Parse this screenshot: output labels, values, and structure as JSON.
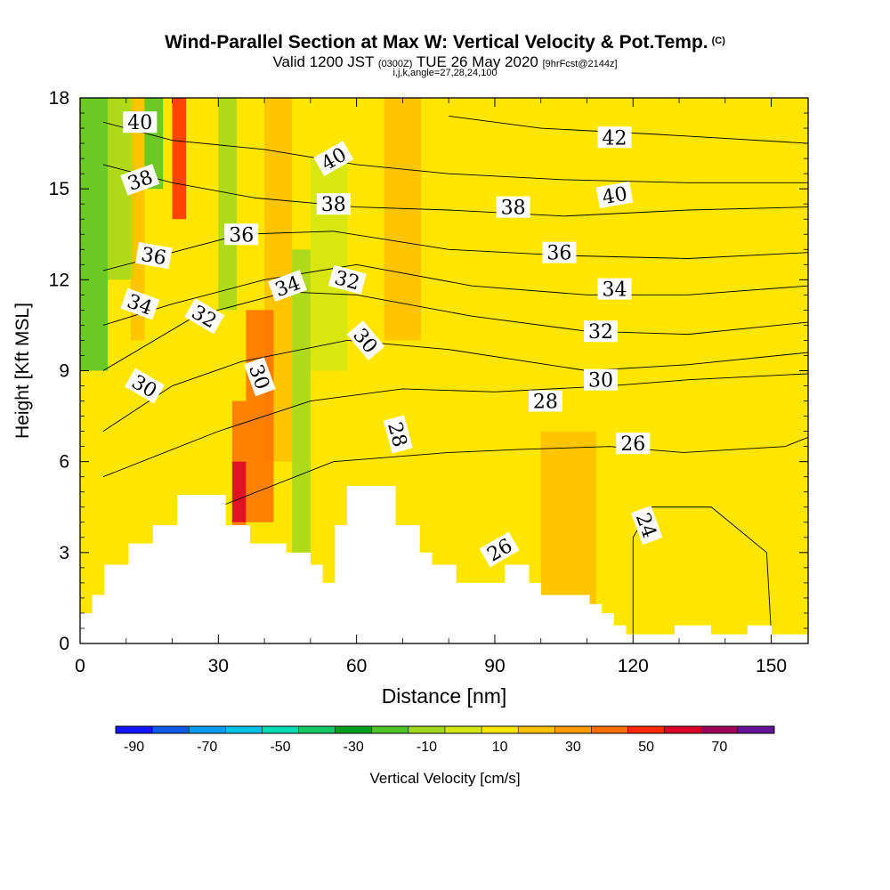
{
  "title": "Wind-Parallel Section at Max W: Vertical Velocity & Pot.Temp.",
  "title_mark": "(C)",
  "subtitle_pre": "Valid 1200 JST",
  "subtitle_small": "(0300Z)",
  "subtitle_post": "TUE 26 May 2020",
  "subtitle_tag": "[9hrFcst@2144z]",
  "subtitle2": "i,j,k,angle=27,28,24,100",
  "chart_data": {
    "type": "heatmap",
    "xlabel": "Distance [nm]",
    "ylabel": "Height [Kft MSL]",
    "xlim": [
      0,
      158
    ],
    "ylim": [
      0,
      18
    ],
    "xticks": [
      "0",
      "30",
      "60",
      "90",
      "120",
      "150"
    ],
    "yticks": [
      "0",
      "3",
      "6",
      "9",
      "12",
      "15",
      "18"
    ],
    "colorbar": {
      "label": "Vertical Velocity [cm/s]",
      "ticks": [
        "-90",
        "-70",
        "-50",
        "-30",
        "-10",
        "10",
        "30",
        "50",
        "70"
      ],
      "bins": [
        -90,
        -80,
        -70,
        -60,
        -50,
        -40,
        -30,
        -20,
        -10,
        0,
        10,
        20,
        30,
        40,
        50,
        60,
        70
      ],
      "colors": [
        "#1414ff",
        "#0f5ae6",
        "#0a9cf0",
        "#00c3e6",
        "#00dcb4",
        "#14c864",
        "#00a01e",
        "#50c328",
        "#a0d71e",
        "#d2e614",
        "#ffe600",
        "#ffbe00",
        "#ff9b00",
        "#ff6e00",
        "#ff2800",
        "#dc0028",
        "#a0005a",
        "#641496"
      ]
    },
    "terrain": [
      [
        0,
        1.0
      ],
      [
        1,
        1.0
      ],
      [
        1,
        1.6
      ],
      [
        2,
        1.6
      ],
      [
        2,
        2.6
      ],
      [
        4,
        2.6
      ],
      [
        4,
        3.3
      ],
      [
        6,
        3.3
      ],
      [
        6,
        3.9
      ],
      [
        8,
        3.9
      ],
      [
        8,
        4.9
      ],
      [
        12,
        4.9
      ],
      [
        12,
        3.9
      ],
      [
        14,
        3.9
      ],
      [
        14,
        3.3
      ],
      [
        17,
        3.3
      ],
      [
        17,
        3.0
      ],
      [
        19,
        3.0
      ],
      [
        19,
        2.6
      ],
      [
        20,
        2.6
      ],
      [
        20,
        2.0
      ],
      [
        21,
        2.0
      ],
      [
        21,
        3.9
      ],
      [
        22,
        3.9
      ],
      [
        22,
        5.2
      ],
      [
        26,
        5.2
      ],
      [
        26,
        3.9
      ],
      [
        28,
        3.9
      ],
      [
        28,
        3.0
      ],
      [
        29,
        3.0
      ],
      [
        29,
        2.6
      ],
      [
        31,
        2.6
      ],
      [
        31,
        2.0
      ],
      [
        35,
        2.0
      ],
      [
        35,
        2.6
      ],
      [
        37,
        2.6
      ],
      [
        37,
        2.0
      ],
      [
        38,
        2.0
      ],
      [
        38,
        1.6
      ],
      [
        42,
        1.6
      ],
      [
        42,
        1.3
      ],
      [
        43,
        1.3
      ],
      [
        43,
        1.0
      ],
      [
        44,
        1.0
      ],
      [
        44,
        0.6
      ],
      [
        45,
        0.6
      ],
      [
        45,
        0.3
      ],
      [
        49,
        0.3
      ],
      [
        49,
        0.6
      ],
      [
        52,
        0.6
      ],
      [
        52,
        0.3
      ],
      [
        55,
        0.3
      ],
      [
        55,
        0.6
      ],
      [
        57,
        0.6
      ],
      [
        57,
        0.3
      ],
      [
        60,
        0.3
      ]
    ],
    "terrain_note": "terrain x values are model grid columns (60 columns span 0–158 nm)",
    "vertical_velocity_cells": [
      {
        "x": [
          0,
          6
        ],
        "y": [
          9,
          18
        ],
        "w": -25
      },
      {
        "x": [
          6,
          12
        ],
        "y": [
          12,
          18
        ],
        "w": -15
      },
      {
        "x": [
          11,
          14
        ],
        "y": [
          10,
          18
        ],
        "w": 12
      },
      {
        "x": [
          33,
          36
        ],
        "y": [
          3,
          8
        ],
        "w": 35
      },
      {
        "x": [
          33,
          36
        ],
        "y": [
          4,
          6
        ],
        "w": 55
      },
      {
        "x": [
          14,
          18
        ],
        "y": [
          15,
          18
        ],
        "w": -30
      },
      {
        "x": [
          20,
          23
        ],
        "y": [
          14,
          18
        ],
        "w": 45
      },
      {
        "x": [
          30,
          34
        ],
        "y": [
          11,
          18
        ],
        "w": -15
      },
      {
        "x": [
          40,
          46
        ],
        "y": [
          6,
          18
        ],
        "w": 12
      },
      {
        "x": [
          66,
          74
        ],
        "y": [
          10,
          18
        ],
        "w": 15
      },
      {
        "x": [
          100,
          112
        ],
        "y": [
          1,
          7
        ],
        "w": 15
      },
      {
        "x": [
          36,
          42
        ],
        "y": [
          4,
          11
        ],
        "w": 35
      },
      {
        "x": [
          46,
          50
        ],
        "y": [
          3,
          13
        ],
        "w": -15
      },
      {
        "x": [
          50,
          58
        ],
        "y": [
          9,
          16
        ],
        "w": -10
      }
    ],
    "potential_temperature_contours": [
      {
        "label": "24",
        "points": [
          [
            120,
            0.3
          ],
          [
            120,
            3.5
          ],
          [
            124,
            4.5
          ],
          [
            137,
            4.5
          ],
          [
            149,
            3.0
          ],
          [
            150,
            0.3
          ]
        ]
      },
      {
        "label": "26",
        "points": [
          [
            5,
            1.5
          ],
          [
            30,
            4.5
          ],
          [
            55,
            6.0
          ],
          [
            80,
            6.3
          ],
          [
            95,
            6.4
          ],
          [
            115,
            6.5
          ],
          [
            131,
            6.3
          ],
          [
            153,
            6.5
          ],
          [
            158,
            6.8
          ]
        ]
      },
      {
        "label": "28",
        "points": [
          [
            5,
            5.5
          ],
          [
            30,
            7.0
          ],
          [
            50,
            8.0
          ],
          [
            70,
            8.4
          ],
          [
            90,
            8.3
          ],
          [
            115,
            8.5
          ],
          [
            132,
            8.7
          ],
          [
            158,
            8.9
          ]
        ]
      },
      {
        "label": "30",
        "points": [
          [
            5,
            7.0
          ],
          [
            20,
            8.5
          ],
          [
            35,
            9.3
          ],
          [
            58,
            10.0
          ],
          [
            80,
            9.7
          ],
          [
            110,
            9.0
          ],
          [
            132,
            9.2
          ],
          [
            158,
            9.6
          ]
        ]
      },
      {
        "label": "32",
        "points": [
          [
            5,
            9.0
          ],
          [
            25,
            10.8
          ],
          [
            45,
            11.6
          ],
          [
            60,
            11.5
          ],
          [
            85,
            10.8
          ],
          [
            110,
            10.3
          ],
          [
            132,
            10.2
          ],
          [
            158,
            10.6
          ]
        ]
      },
      {
        "label": "34",
        "points": [
          [
            5,
            10.5
          ],
          [
            20,
            11.2
          ],
          [
            40,
            12.0
          ],
          [
            60,
            12.5
          ],
          [
            85,
            11.8
          ],
          [
            110,
            11.5
          ],
          [
            132,
            11.5
          ],
          [
            158,
            11.8
          ]
        ]
      },
      {
        "label": "36",
        "points": [
          [
            5,
            12.3
          ],
          [
            20,
            12.9
          ],
          [
            35,
            13.5
          ],
          [
            55,
            13.6
          ],
          [
            80,
            13.0
          ],
          [
            105,
            12.8
          ],
          [
            132,
            12.7
          ],
          [
            158,
            12.9
          ]
        ]
      },
      {
        "label": "38",
        "points": [
          [
            5,
            15.8
          ],
          [
            20,
            15.2
          ],
          [
            38,
            14.7
          ],
          [
            60,
            14.4
          ],
          [
            80,
            14.3
          ],
          [
            105,
            14.1
          ],
          [
            132,
            14.3
          ],
          [
            158,
            14.4
          ]
        ]
      },
      {
        "label": "40",
        "points": [
          [
            5,
            17.2
          ],
          [
            20,
            16.6
          ],
          [
            40,
            16.3
          ],
          [
            60,
            15.8
          ],
          [
            80,
            15.5
          ],
          [
            105,
            15.3
          ],
          [
            132,
            15.2
          ],
          [
            158,
            15.2
          ]
        ]
      },
      {
        "label": "42",
        "points": [
          [
            80,
            17.4
          ],
          [
            100,
            17.0
          ],
          [
            125,
            16.8
          ],
          [
            158,
            16.5
          ]
        ]
      }
    ],
    "contour_labels": [
      {
        "text": "40",
        "x": 13,
        "y": 17.2,
        "rot": 0
      },
      {
        "text": "38",
        "x": 13,
        "y": 15.3,
        "rot": 20
      },
      {
        "text": "36",
        "x": 16,
        "y": 12.8,
        "rot": -10
      },
      {
        "text": "34",
        "x": 13,
        "y": 11.2,
        "rot": -20
      },
      {
        "text": "32",
        "x": 27,
        "y": 10.8,
        "rot": -30
      },
      {
        "text": "30",
        "x": 14,
        "y": 8.5,
        "rot": -30
      },
      {
        "text": "36",
        "x": 35,
        "y": 13.5,
        "rot": 0
      },
      {
        "text": "34",
        "x": 45,
        "y": 11.8,
        "rot": 20
      },
      {
        "text": "30",
        "x": 39,
        "y": 8.8,
        "rot": -70
      },
      {
        "text": "40",
        "x": 55,
        "y": 16.0,
        "rot": 30
      },
      {
        "text": "38",
        "x": 55,
        "y": 14.5,
        "rot": 0
      },
      {
        "text": "32",
        "x": 58,
        "y": 12.0,
        "rot": -15
      },
      {
        "text": "30",
        "x": 62,
        "y": 10.0,
        "rot": -50
      },
      {
        "text": "28",
        "x": 69,
        "y": 6.9,
        "rot": -75
      },
      {
        "text": "38",
        "x": 94,
        "y": 14.4,
        "rot": 0
      },
      {
        "text": "36",
        "x": 104,
        "y": 12.9,
        "rot": 0
      },
      {
        "text": "26",
        "x": 91,
        "y": 3.1,
        "rot": 30
      },
      {
        "text": "28",
        "x": 101,
        "y": 8.0,
        "rot": 0
      },
      {
        "text": "42",
        "x": 116,
        "y": 16.7,
        "rot": 0
      },
      {
        "text": "40",
        "x": 116,
        "y": 14.8,
        "rot": 10
      },
      {
        "text": "34",
        "x": 116,
        "y": 11.7,
        "rot": 0
      },
      {
        "text": "32",
        "x": 113,
        "y": 10.3,
        "rot": 0
      },
      {
        "text": "30",
        "x": 113,
        "y": 8.7,
        "rot": 0
      },
      {
        "text": "26",
        "x": 120,
        "y": 6.6,
        "rot": 0
      },
      {
        "text": "24",
        "x": 123,
        "y": 3.9,
        "rot": -70
      }
    ]
  }
}
